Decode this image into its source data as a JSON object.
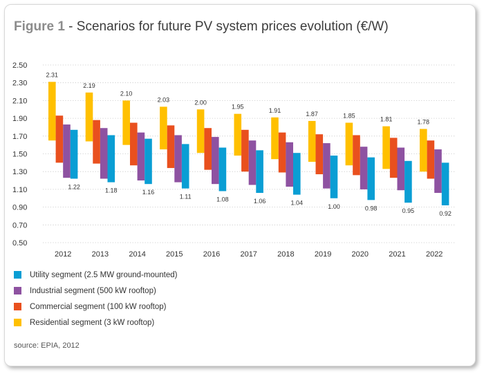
{
  "figure": {
    "label": "Figure 1",
    "separator": " - ",
    "title": "Scenarios for future PV system prices evolution (€/W)"
  },
  "colors": {
    "residential": "#ffc000",
    "commercial": "#e9501e",
    "industrial": "#8e52a1",
    "utility": "#0a9ed4"
  },
  "legend": [
    {
      "key": "utility",
      "label": "Utility segment (2.5 MW ground-mounted)"
    },
    {
      "key": "industrial",
      "label": "Industrial segment (500 kW rooftop)"
    },
    {
      "key": "commercial",
      "label": "Commercial segment (100 kW rooftop)"
    },
    {
      "key": "residential",
      "label": "Residential segment (3 kW rooftop)"
    }
  ],
  "source": {
    "label": "source:",
    "text": "EPIA, 2012"
  },
  "chart_data": {
    "type": "bar",
    "subtype": "floating range bars",
    "title": "Scenarios for future PV system prices evolution (€/W)",
    "ylim": [
      0.5,
      2.5
    ],
    "yticks": [
      "0.50",
      "0.70",
      "0.90",
      "1.10",
      "1.30",
      "1.50",
      "1.70",
      "1.90",
      "2.10",
      "2.30",
      "2.50"
    ],
    "grid": "horizontal dotted",
    "legend_position": "bottom",
    "categories": [
      "2012",
      "2013",
      "2014",
      "2015",
      "2016",
      "2017",
      "2018",
      "2019",
      "2020",
      "2021",
      "2022"
    ],
    "series": [
      {
        "key": "residential",
        "name": "Residential segment (3 kW rooftop)",
        "low": [
          1.65,
          1.64,
          1.6,
          1.55,
          1.51,
          1.48,
          1.44,
          1.41,
          1.37,
          1.33,
          1.3
        ],
        "high": [
          2.31,
          2.19,
          2.1,
          2.03,
          2.0,
          1.95,
          1.91,
          1.87,
          1.85,
          1.81,
          1.78
        ]
      },
      {
        "key": "commercial",
        "name": "Commercial segment (100 kW rooftop)",
        "low": [
          1.4,
          1.39,
          1.37,
          1.34,
          1.32,
          1.3,
          1.29,
          1.27,
          1.26,
          1.23,
          1.22
        ],
        "high": [
          1.93,
          1.88,
          1.85,
          1.82,
          1.79,
          1.77,
          1.74,
          1.72,
          1.71,
          1.68,
          1.65
        ]
      },
      {
        "key": "industrial",
        "name": "Industrial segment (500 kW rooftop)",
        "low": [
          1.23,
          1.22,
          1.2,
          1.18,
          1.16,
          1.15,
          1.13,
          1.11,
          1.1,
          1.09,
          1.06
        ],
        "high": [
          1.83,
          1.79,
          1.74,
          1.71,
          1.69,
          1.65,
          1.63,
          1.62,
          1.58,
          1.57,
          1.55
        ]
      },
      {
        "key": "utility",
        "name": "Utility segment (2.5 MW ground-mounted)",
        "low": [
          1.22,
          1.18,
          1.16,
          1.11,
          1.08,
          1.06,
          1.04,
          1.0,
          0.98,
          0.95,
          0.92
        ],
        "high": [
          1.77,
          1.71,
          1.67,
          1.61,
          1.57,
          1.54,
          1.51,
          1.48,
          1.46,
          1.42,
          1.4
        ]
      }
    ],
    "data_labels": {
      "residential_high": [
        "2.31",
        "2.19",
        "2.10",
        "2.03",
        "2.00",
        "1.95",
        "1.91",
        "1.87",
        "1.85",
        "1.81",
        "1.78"
      ],
      "utility_low": [
        "1.22",
        "1.18",
        "1.16",
        "1.11",
        "1.08",
        "1.06",
        "1.04",
        "1.00",
        "0.98",
        "0.95",
        "0.92"
      ]
    }
  }
}
